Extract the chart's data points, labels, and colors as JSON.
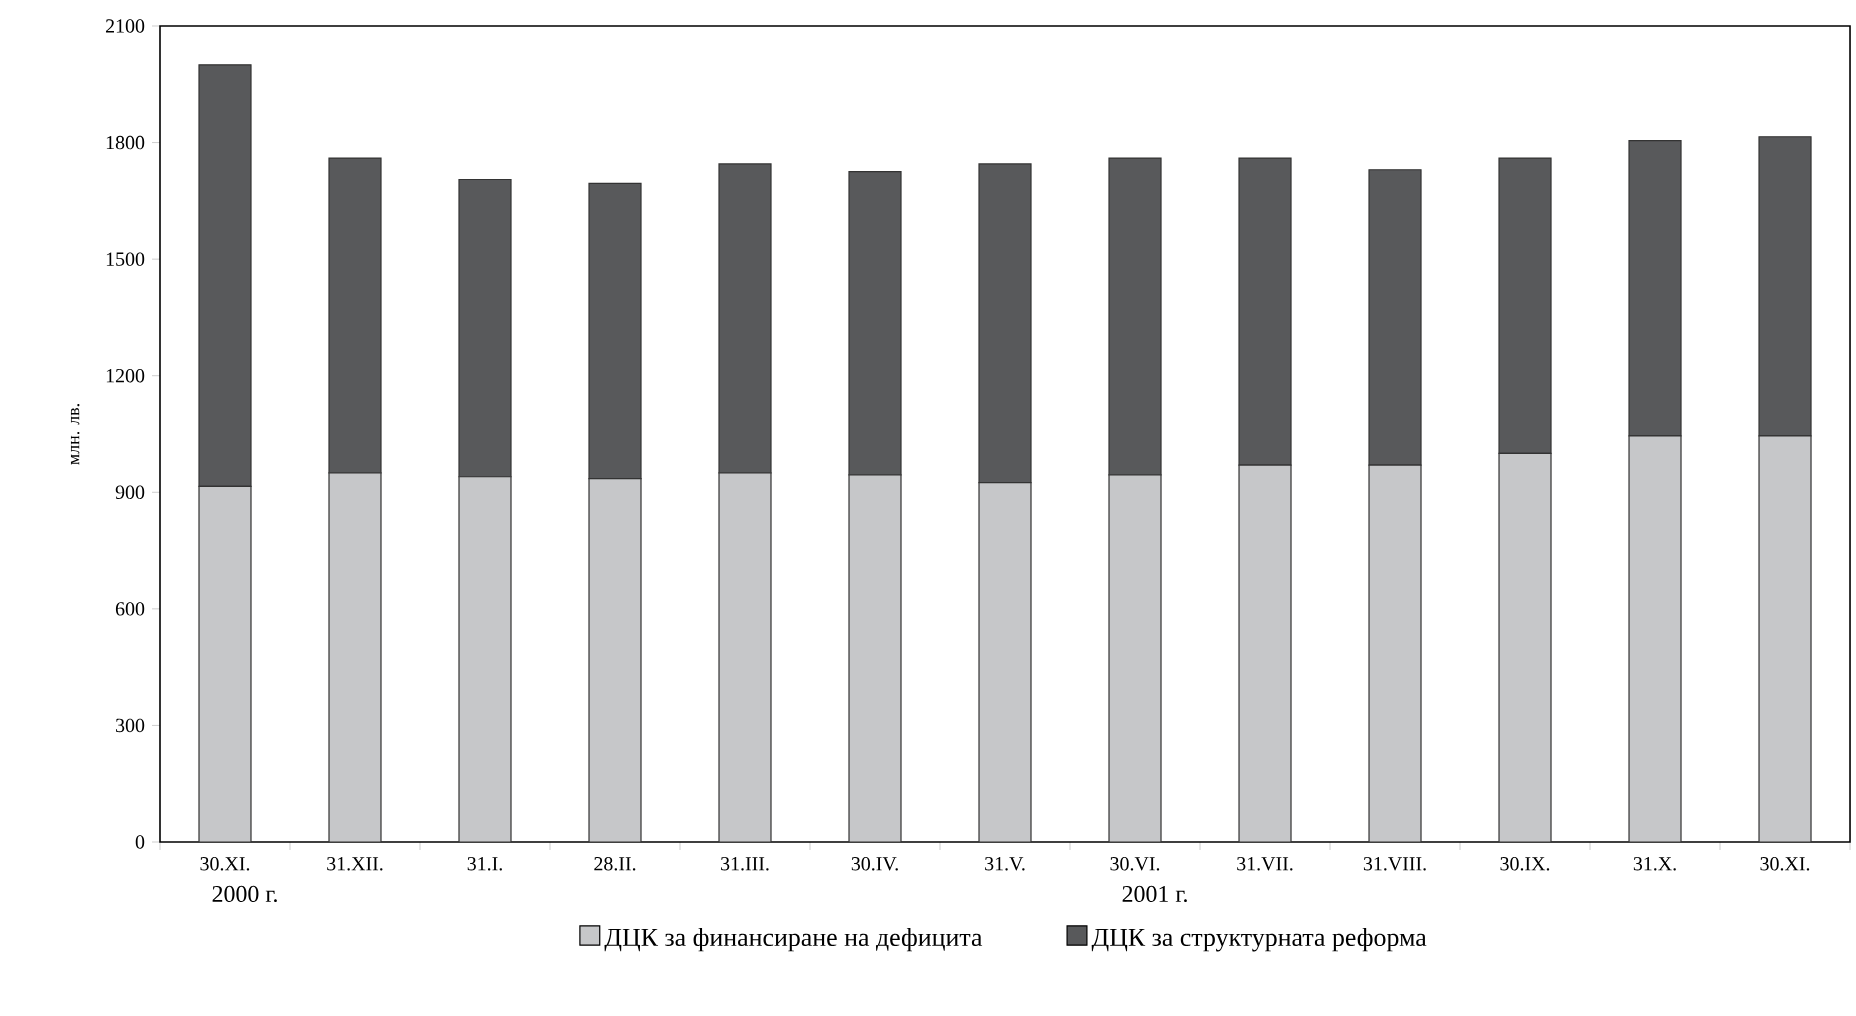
{
  "chart_data": {
    "type": "bar",
    "stacked": true,
    "ylabel": "млн. лв.",
    "categories": [
      "30.XI.",
      "31.XII.",
      "31.I.",
      "28.II.",
      "31.III.",
      "30.IV.",
      "31.V.",
      "30.VI.",
      "31.VII.",
      "31.VIII.",
      "30.IX.",
      "31.X.",
      "30.XI."
    ],
    "series": [
      {
        "name": "ДЦК за финансиране на дефицита",
        "color": "#c6c7c9",
        "values": [
          915,
          950,
          940,
          935,
          950,
          945,
          925,
          945,
          970,
          970,
          1000,
          1045,
          1045
        ]
      },
      {
        "name": "ДЦК за структурната реформа",
        "color": "#58595b",
        "values": [
          1085,
          810,
          765,
          760,
          795,
          780,
          820,
          815,
          790,
          760,
          760,
          760,
          770
        ]
      }
    ],
    "ylim": [
      0,
      2100
    ],
    "yticks": [
      0,
      300,
      600,
      900,
      1200,
      1500,
      1800,
      2100
    ],
    "legend": "bottom",
    "annotations": [
      "2000 г.",
      "2001 г."
    ]
  }
}
